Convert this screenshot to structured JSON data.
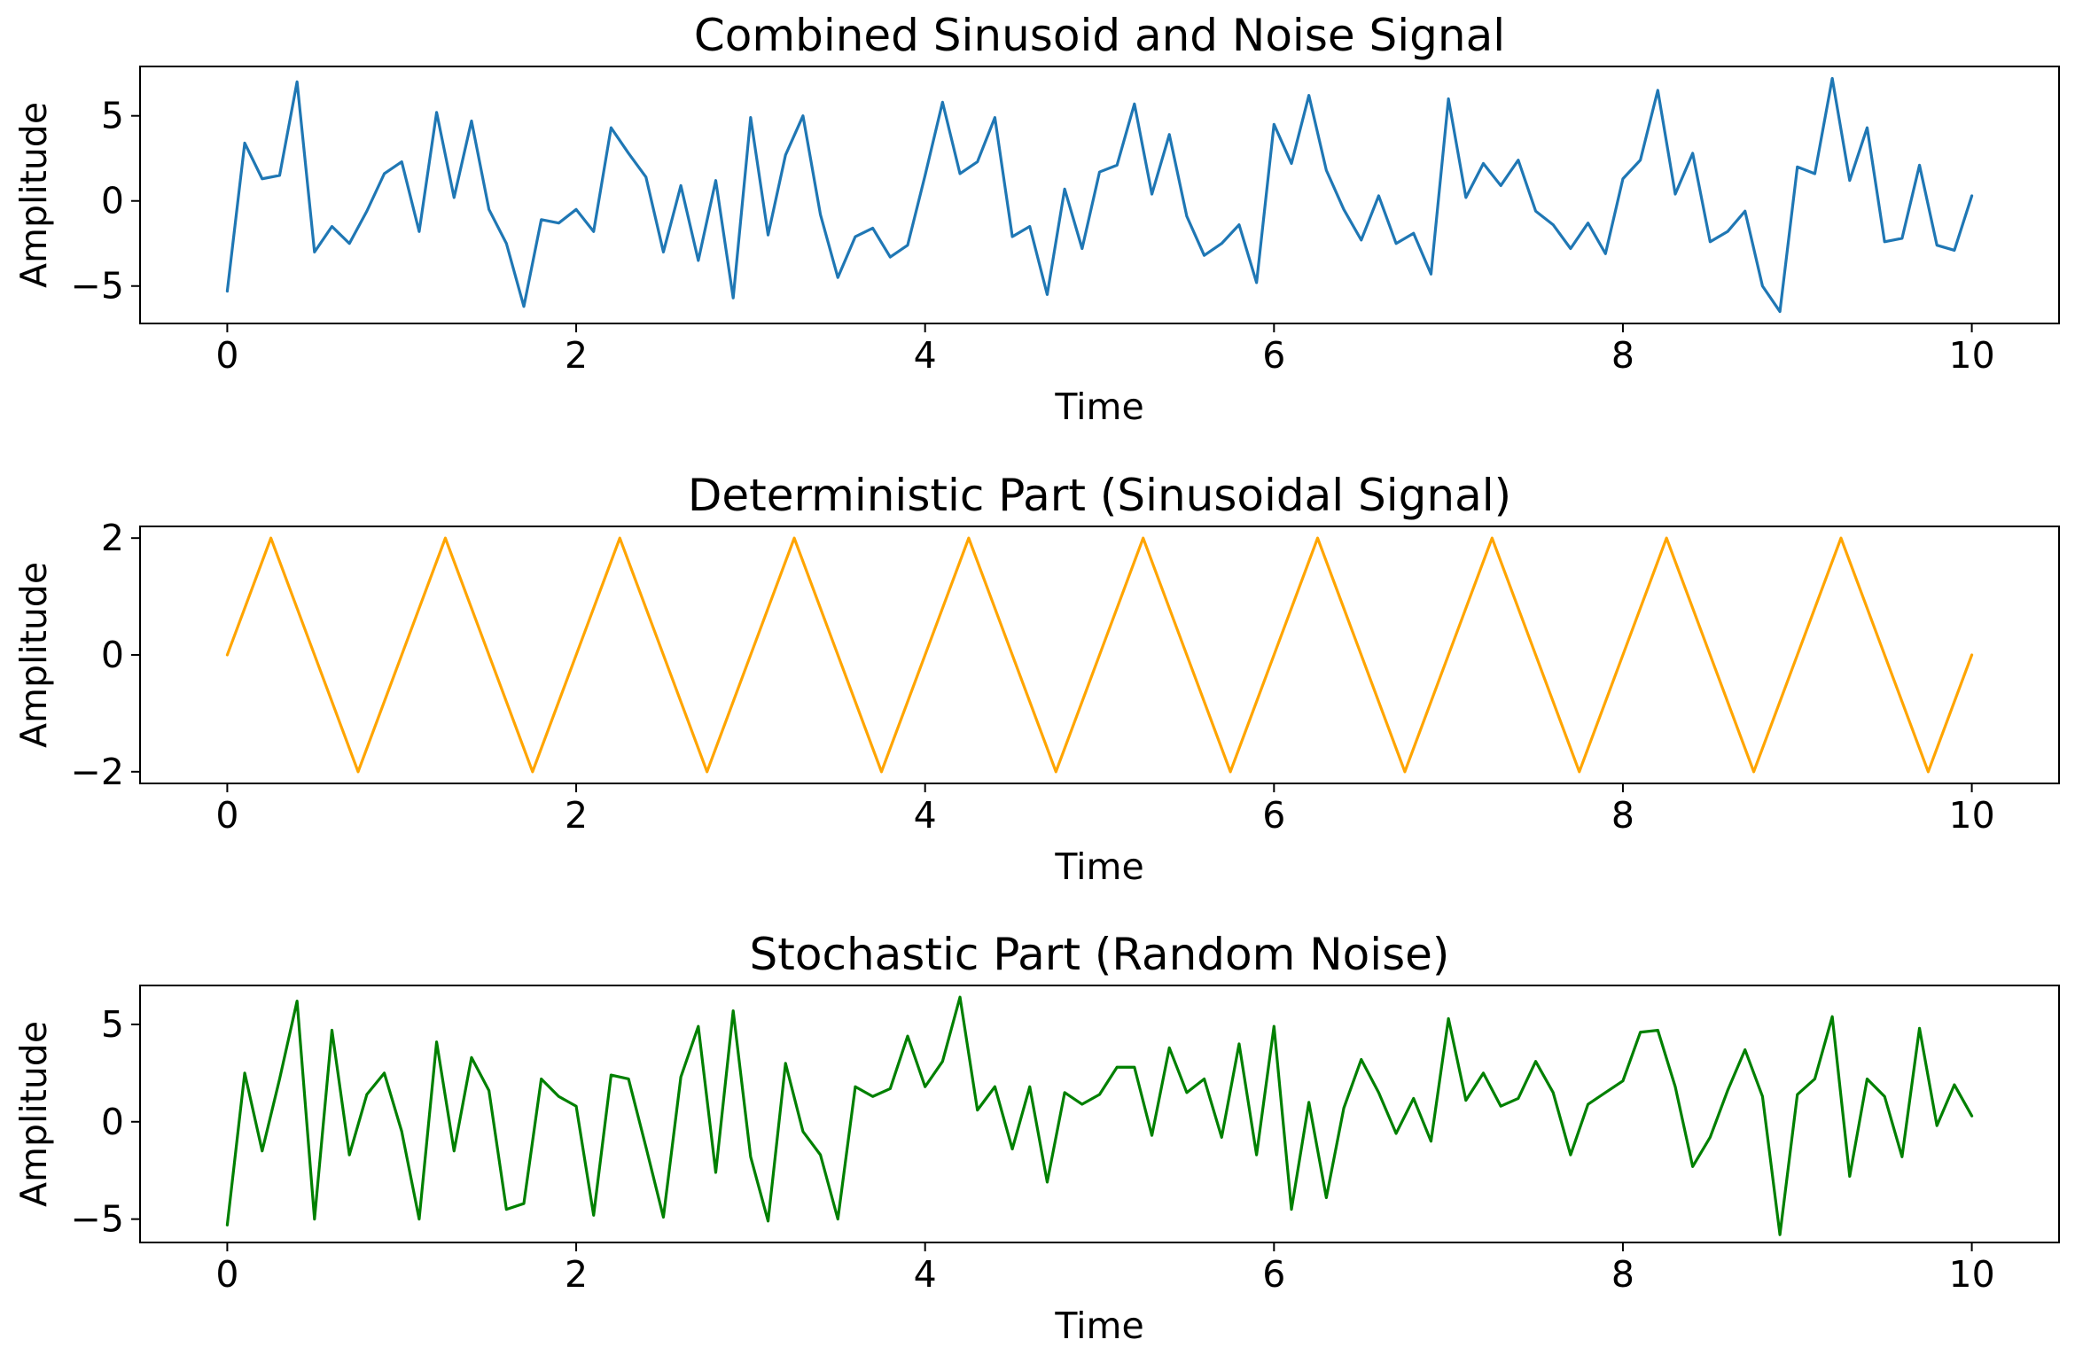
{
  "chart_data": [
    {
      "type": "line",
      "title": "Combined Sinusoid and Noise Signal",
      "xlabel": "Time",
      "ylabel": "Amplitude",
      "xlim": [
        -0.5,
        10.5
      ],
      "ylim": [
        -7.2,
        7.9
      ],
      "xticks": [
        0,
        2,
        4,
        6,
        8,
        10
      ],
      "xtick_labels": [
        "0",
        "2",
        "4",
        "6",
        "8",
        "10"
      ],
      "yticks": [
        -5,
        0,
        5
      ],
      "ytick_labels": [
        "−5",
        "0",
        "5"
      ],
      "grid": false,
      "color": "#1f77b4",
      "series": [
        {
          "x": [
            0,
            0.1,
            0.2,
            0.3,
            0.4,
            0.5,
            0.6,
            0.7,
            0.8,
            0.9,
            1.0,
            1.1,
            1.2,
            1.3,
            1.4,
            1.5,
            1.6,
            1.7,
            1.8,
            1.9,
            2.0,
            2.1,
            2.2,
            2.3,
            2.4,
            2.5,
            2.6,
            2.7,
            2.8,
            2.9,
            3.0,
            3.1,
            3.2,
            3.3,
            3.4,
            3.5,
            3.6,
            3.7,
            3.8,
            3.9,
            4.0,
            4.1,
            4.2,
            4.3,
            4.4,
            4.5,
            4.6,
            4.7,
            4.8,
            4.9,
            5.0,
            5.1,
            5.2,
            5.3,
            5.4,
            5.5,
            5.6,
            5.7,
            5.8,
            5.9,
            6.0,
            6.1,
            6.2,
            6.3,
            6.4,
            6.5,
            6.6,
            6.7,
            6.8,
            6.9,
            7.0,
            7.1,
            7.2,
            7.3,
            7.4,
            7.5,
            7.6,
            7.7,
            7.8,
            7.9,
            8.0,
            8.1,
            8.2,
            8.3,
            8.4,
            8.5,
            8.6,
            8.7,
            8.8,
            8.9,
            9.0,
            9.1,
            9.2,
            9.3,
            9.4,
            9.5,
            9.6,
            9.7,
            9.8,
            9.9,
            10.0
          ],
          "y": [
            -5.3,
            3.4,
            1.3,
            1.5,
            7.0,
            -3.0,
            -1.5,
            -2.5,
            -0.6,
            1.6,
            2.3,
            -1.8,
            5.2,
            0.2,
            4.7,
            -0.5,
            -2.5,
            -6.2,
            -1.1,
            -1.3,
            -0.5,
            -1.8,
            4.3,
            2.8,
            1.4,
            -3.0,
            0.9,
            -3.5,
            1.2,
            -5.7,
            4.9,
            -2.0,
            2.7,
            5.0,
            -0.8,
            -4.5,
            -2.1,
            -1.6,
            -3.3,
            -2.6,
            1.5,
            5.8,
            1.6,
            2.3,
            4.9,
            -2.1,
            -1.5,
            -5.5,
            0.7,
            -2.8,
            1.7,
            2.1,
            5.7,
            0.4,
            3.9,
            -0.9,
            -3.2,
            -2.5,
            -1.4,
            -4.8,
            4.5,
            2.2,
            6.2,
            1.8,
            -0.5,
            -2.3,
            0.3,
            -2.5,
            -1.9,
            -4.3,
            6.0,
            0.2,
            2.2,
            0.9,
            2.4,
            -0.6,
            -1.4,
            -2.8,
            -1.3,
            -3.1,
            1.3,
            2.4,
            6.5,
            0.4,
            2.8,
            -2.4,
            -1.8,
            -0.6,
            -5.0,
            -6.5,
            2.0,
            1.6,
            7.2,
            1.2,
            4.3,
            -2.4,
            -2.2,
            2.1,
            -2.6,
            -2.9,
            0.3
          ]
        }
      ]
    },
    {
      "type": "line",
      "title": "Deterministic Part (Sinusoidal Signal)",
      "xlabel": "Time",
      "ylabel": "Amplitude",
      "xlim": [
        -0.5,
        10.5
      ],
      "ylim": [
        -2.2,
        2.2
      ],
      "xticks": [
        0,
        2,
        4,
        6,
        8,
        10
      ],
      "xtick_labels": [
        "0",
        "2",
        "4",
        "6",
        "8",
        "10"
      ],
      "yticks": [
        -2,
        0,
        2
      ],
      "ytick_labels": [
        "−2",
        "0",
        "2"
      ],
      "grid": false,
      "color": "#ffa500",
      "series": [
        {
          "x": [
            0,
            0.25,
            0.5,
            0.75,
            1.0,
            1.25,
            1.5,
            1.75,
            2.0,
            2.25,
            2.5,
            2.75,
            3.0,
            3.25,
            3.5,
            3.75,
            4.0,
            4.25,
            4.5,
            4.75,
            5.0,
            5.25,
            5.5,
            5.75,
            6.0,
            6.25,
            6.5,
            6.75,
            7.0,
            7.25,
            7.5,
            7.75,
            8.0,
            8.25,
            8.5,
            8.75,
            9.0,
            9.25,
            9.5,
            9.75,
            10.0
          ],
          "y": [
            0,
            2,
            0,
            -2,
            0,
            2,
            0,
            -2,
            0,
            2,
            0,
            -2,
            0,
            2,
            0,
            -2,
            0,
            2,
            0,
            -2,
            0,
            2,
            0,
            -2,
            0,
            2,
            0,
            -2,
            0,
            2,
            0,
            -2,
            0,
            2,
            0,
            -2,
            0,
            2,
            0,
            -2,
            0
          ]
        }
      ]
    },
    {
      "type": "line",
      "title": "Stochastic Part (Random Noise)",
      "xlabel": "Time",
      "ylabel": "Amplitude",
      "xlim": [
        -0.5,
        10.5
      ],
      "ylim": [
        -6.2,
        7.0
      ],
      "xticks": [
        0,
        2,
        4,
        6,
        8,
        10
      ],
      "xtick_labels": [
        "0",
        "2",
        "4",
        "6",
        "8",
        "10"
      ],
      "yticks": [
        -5,
        0,
        5
      ],
      "ytick_labels": [
        "−5",
        "0",
        "5"
      ],
      "grid": false,
      "color": "#008000",
      "series": [
        {
          "x": [
            0,
            0.1,
            0.2,
            0.3,
            0.4,
            0.5,
            0.6,
            0.7,
            0.8,
            0.9,
            1.0,
            1.1,
            1.2,
            1.3,
            1.4,
            1.5,
            1.6,
            1.7,
            1.8,
            1.9,
            2.0,
            2.1,
            2.2,
            2.3,
            2.4,
            2.5,
            2.6,
            2.7,
            2.8,
            2.9,
            3.0,
            3.1,
            3.2,
            3.3,
            3.4,
            3.5,
            3.6,
            3.7,
            3.8,
            3.9,
            4.0,
            4.1,
            4.2,
            4.3,
            4.4,
            4.5,
            4.6,
            4.7,
            4.8,
            4.9,
            5.0,
            5.1,
            5.2,
            5.3,
            5.4,
            5.5,
            5.6,
            5.7,
            5.8,
            5.9,
            6.0,
            6.1,
            6.2,
            6.3,
            6.4,
            6.5,
            6.6,
            6.7,
            6.8,
            6.9,
            7.0,
            7.1,
            7.2,
            7.3,
            7.4,
            7.5,
            7.6,
            7.7,
            7.8,
            7.9,
            8.0,
            8.1,
            8.2,
            8.3,
            8.4,
            8.5,
            8.6,
            8.7,
            8.8,
            8.9,
            9.0,
            9.1,
            9.2,
            9.3,
            9.4,
            9.5,
            9.6,
            9.7,
            9.8,
            9.9,
            10.0
          ],
          "y": [
            -5.3,
            2.5,
            -1.5,
            2.2,
            6.2,
            -5.0,
            4.7,
            -1.7,
            1.4,
            2.5,
            -0.5,
            -5.0,
            4.1,
            -1.5,
            3.3,
            1.6,
            -4.5,
            -4.2,
            2.2,
            1.3,
            0.8,
            -4.8,
            2.4,
            2.2,
            -1.3,
            -4.9,
            2.3,
            4.9,
            -2.6,
            5.7,
            -1.8,
            -5.1,
            3.0,
            -0.5,
            -1.7,
            -5.0,
            1.8,
            1.3,
            1.7,
            4.4,
            1.8,
            3.1,
            6.4,
            0.6,
            1.8,
            -1.4,
            1.8,
            -3.1,
            1.5,
            0.9,
            1.4,
            2.8,
            2.8,
            -0.7,
            3.8,
            1.5,
            2.2,
            -0.8,
            4.0,
            -1.7,
            4.9,
            -4.5,
            1.0,
            -3.9,
            0.7,
            3.2,
            1.5,
            -0.6,
            1.2,
            -1.0,
            5.3,
            1.1,
            2.5,
            0.8,
            1.2,
            3.1,
            1.5,
            -1.7,
            0.9,
            1.5,
            2.1,
            4.6,
            4.7,
            1.8,
            -2.3,
            -0.8,
            1.6,
            3.7,
            1.3,
            -5.8,
            1.4,
            2.2,
            5.4,
            -2.8,
            2.2,
            1.3,
            -1.8,
            4.8,
            -0.2,
            1.9,
            0.3
          ]
        }
      ]
    }
  ]
}
